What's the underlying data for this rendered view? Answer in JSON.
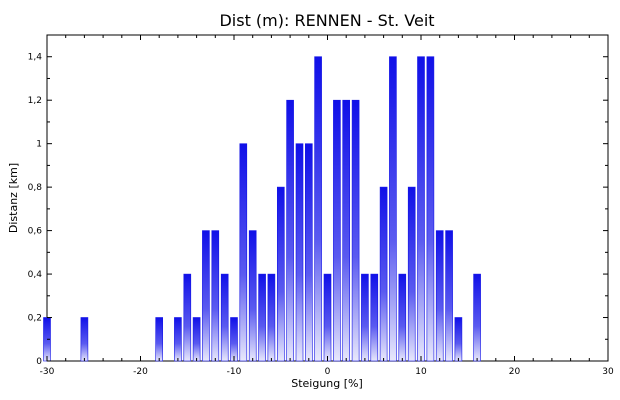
{
  "chart_data": {
    "type": "bar",
    "title": "Dist (m): RENNEN - St. Veit",
    "xlabel": "Steigung [%]",
    "ylabel": "Distanz [km]",
    "xlim": [
      -30,
      30
    ],
    "ylim": [
      0,
      1.5
    ],
    "xticks": [
      -30,
      -20,
      -10,
      0,
      10,
      20,
      30
    ],
    "xtick_labels": [
      "-30",
      "-20",
      "-10",
      "0",
      "10",
      "20",
      "30"
    ],
    "yticks": [
      0,
      0.2,
      0.4,
      0.6,
      0.8,
      1.0,
      1.2,
      1.4
    ],
    "ytick_labels": [
      "0",
      "0,2",
      "0,4",
      "0,6",
      "0,8",
      "1",
      "1,2",
      "1,4"
    ],
    "grid": false,
    "bar_color": "#1414e6",
    "x": [
      -30,
      -26,
      -18,
      -16,
      -15,
      -14,
      -13,
      -12,
      -11,
      -10,
      -9,
      -8,
      -7,
      -6,
      -5,
      -4,
      -3,
      -2,
      -1,
      0,
      1,
      2,
      3,
      4,
      5,
      6,
      7,
      8,
      9,
      10,
      11,
      12,
      13,
      14,
      16
    ],
    "values": [
      0.2,
      0.2,
      0.2,
      0.2,
      0.4,
      0.2,
      0.6,
      0.6,
      0.4,
      0.2,
      1.0,
      0.6,
      0.4,
      0.4,
      0.8,
      1.2,
      1.0,
      1.0,
      1.4,
      0.4,
      1.2,
      1.2,
      1.2,
      0.4,
      0.4,
      0.8,
      1.4,
      0.4,
      0.8,
      1.4,
      1.4,
      0.6,
      0.6,
      0.2,
      0.4
    ]
  }
}
